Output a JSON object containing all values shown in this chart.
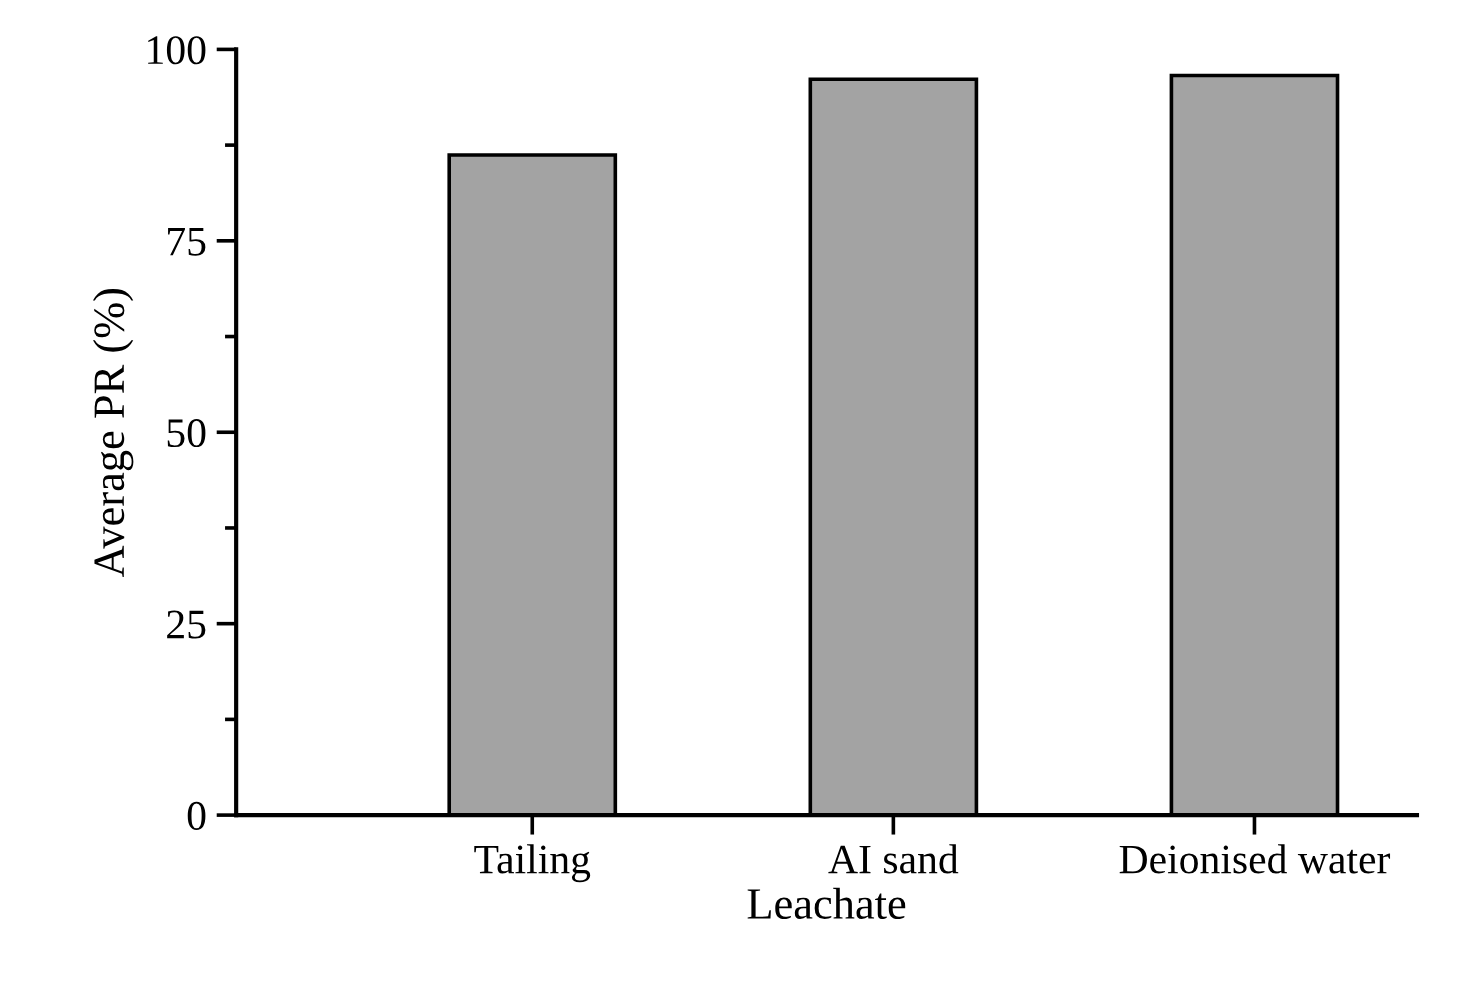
{
  "chart_data": {
    "type": "bar",
    "xlabel": "Leachate",
    "ylabel": "Average PR (%)",
    "categories": [
      "Tailing",
      "AI sand",
      "Deionised water"
    ],
    "values": [
      86.2,
      96.1,
      96.6
    ],
    "color": "#a3a3a3",
    "ylim": [
      0,
      100
    ],
    "yticks": [
      0,
      25,
      50,
      75,
      100
    ],
    "grid": false,
    "legend": false
  }
}
